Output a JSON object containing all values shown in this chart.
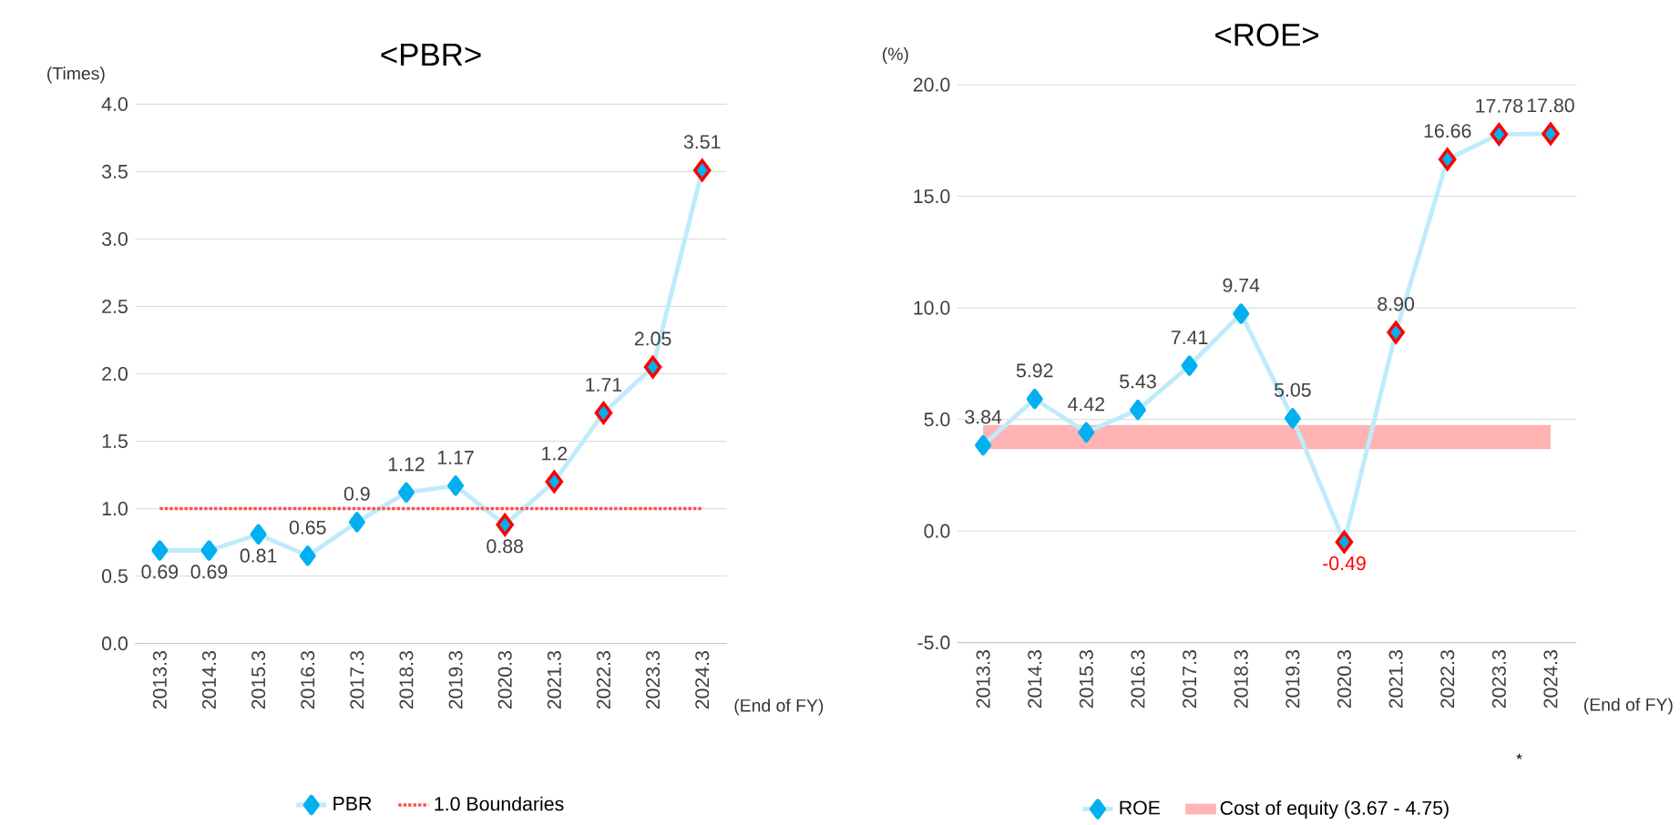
{
  "chart_data": [
    {
      "type": "line",
      "title": "<PBR>",
      "ylabel": "(Times)",
      "xlabel": "(End of FY)",
      "categories": [
        "2013.3",
        "2014.3",
        "2015.3",
        "2016.3",
        "2017.3",
        "2018.3",
        "2019.3",
        "2020.3",
        "2021.3",
        "2022.3",
        "2023.3",
        "2024.3"
      ],
      "series": [
        {
          "name": "PBR",
          "color": "#00b0f0",
          "values": [
            0.69,
            0.69,
            0.81,
            0.65,
            0.9,
            1.12,
            1.17,
            0.88,
            1.2,
            1.71,
            2.05,
            3.51
          ],
          "value_labels": [
            "0.69",
            "0.69",
            "0.81",
            "0.65",
            "0.9",
            "1.12",
            "1.17",
            "0.88",
            "1.2",
            "1.71",
            "2.05",
            "3.51"
          ]
        },
        {
          "type": "scatter",
          "color": "#ff0000",
          "x": [
            "2020.3",
            "2021.3",
            "2022.3",
            "2023.3",
            "2024.3"
          ],
          "values": [
            0.88,
            1.2,
            1.71,
            2.05,
            3.51
          ]
        }
      ],
      "ylim": [
        0,
        4
      ],
      "yticks": [
        {
          "value": 0,
          "label": "0.0"
        },
        {
          "value": 0.5,
          "label": "0.5"
        },
        {
          "value": 1,
          "label": "1.0"
        },
        {
          "value": 1.5,
          "label": "1.5"
        },
        {
          "value": 2,
          "label": "2.0"
        },
        {
          "value": 2.5,
          "label": "2.5"
        },
        {
          "value": 3,
          "label": "3.0"
        },
        {
          "value": 3.5,
          "label": "3.5"
        },
        {
          "value": 4,
          "label": "4.0"
        }
      ],
      "ref_lines": [
        {
          "axis": "y",
          "value": 1.0,
          "label": "1.0 Boundaries",
          "color": "#ff5050",
          "line_style": "dotted"
        }
      ],
      "grid": "y",
      "legend": "bottom",
      "marker": "diamond"
    },
    {
      "type": "line",
      "title": "<ROE>",
      "ylabel": "(%)",
      "xlabel": "(End of FY)",
      "categories": [
        "2013.3",
        "2014.3",
        "2015.3",
        "2016.3",
        "2017.3",
        "2018.3",
        "2019.3",
        "2020.3",
        "2021.3",
        "2022.3",
        "2023.3",
        "2024.3"
      ],
      "series": [
        {
          "name": "ROE",
          "color": "#00b0f0",
          "values": [
            3.84,
            5.92,
            4.42,
            5.43,
            7.41,
            9.74,
            5.05,
            -0.49,
            8.9,
            16.66,
            17.78,
            17.8
          ],
          "value_labels": [
            "3.84",
            "5.92",
            "4.42",
            "5.43",
            "7.41",
            "9.74",
            "5.05",
            "-0.49",
            "8.90",
            "16.66",
            "17.78",
            "17.80"
          ]
        },
        {
          "type": "scatter",
          "color": "#ff0000",
          "x": [
            "2020.3",
            "2021.3",
            "2022.3",
            "2023.3",
            "2024.3"
          ],
          "values": [
            -0.49,
            8.9,
            16.66,
            17.78,
            17.8
          ]
        }
      ],
      "ylim": [
        -5,
        20
      ],
      "yticks": [
        {
          "value": -5,
          "label": "-5.0"
        },
        {
          "value": 0,
          "label": "0.0"
        },
        {
          "value": 5,
          "label": "5.0"
        },
        {
          "value": 10,
          "label": "10.0"
        },
        {
          "value": 15,
          "label": "15.0"
        },
        {
          "value": 20,
          "label": "20.0"
        }
      ],
      "bands": [
        {
          "axis": "y",
          "from": 3.67,
          "to": 4.75,
          "label": "Cost of equity (3.67 - 4.75)",
          "color": "#ffb3b3"
        }
      ],
      "annotations": [
        "*"
      ],
      "grid": "y",
      "legend": "bottom",
      "marker": "diamond"
    }
  ]
}
